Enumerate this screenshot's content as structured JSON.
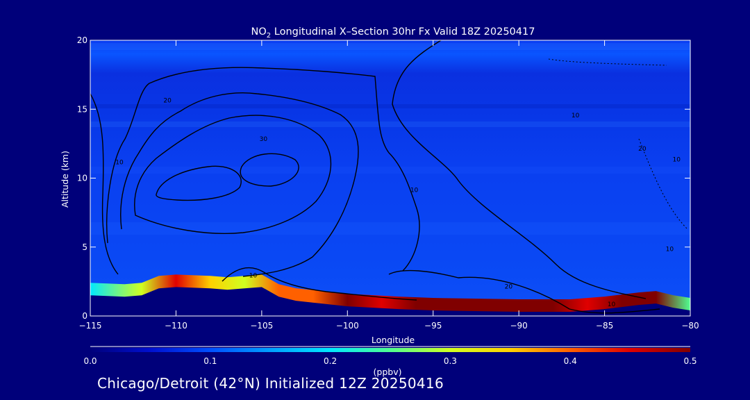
{
  "chart_data": {
    "type": "heatmap",
    "title_prefix": "NO",
    "title_subscript": "2",
    "title_suffix": " Longitudinal X–Section 30hr  Fx Valid 18Z 20250417",
    "xlabel": "Longitude",
    "ylabel": "Altitude (km)",
    "xlim": [
      -115,
      -80
    ],
    "ylim": [
      0,
      20
    ],
    "x_ticks": [
      -115,
      -110,
      -105,
      -100,
      -95,
      -90,
      -85,
      -80
    ],
    "x_tick_labels": [
      "−115",
      "−110",
      "−105",
      "−100",
      "−95",
      "−90",
      "−85",
      "−80"
    ],
    "y_ticks": [
      0,
      5,
      10,
      15,
      20
    ],
    "y_tick_labels": [
      "0",
      "5",
      "10",
      "15",
      "20"
    ],
    "colorbar": {
      "label": "(ppbv)",
      "range": [
        0.0,
        0.5
      ],
      "ticks": [
        0.0,
        0.1,
        0.2,
        0.3,
        0.4,
        0.5
      ],
      "tick_labels": [
        "0.0",
        "0.1",
        "0.2",
        "0.3",
        "0.4",
        "0.5"
      ],
      "colormap": [
        "#00007a",
        "#0010d0",
        "#0050ff",
        "#00a0ff",
        "#00e8ff",
        "#50ff90",
        "#d0ff20",
        "#ffd000",
        "#ff6000",
        "#e00000",
        "#800000"
      ]
    },
    "surface_profile": {
      "lon": [
        -115,
        -113,
        -112,
        -111,
        -110,
        -108,
        -107,
        -106,
        -105,
        -104,
        -103,
        -100,
        -97,
        -95,
        -90,
        -87,
        -85,
        -83,
        -82,
        -81,
        -80
      ],
      "alt_km": [
        1.5,
        1.4,
        1.5,
        2.0,
        2.1,
        2.0,
        1.9,
        2.0,
        2.1,
        1.4,
        1.1,
        0.7,
        0.5,
        0.4,
        0.3,
        0.3,
        0.5,
        0.8,
        0.9,
        0.6,
        0.4
      ]
    },
    "boundary_layer_no2_ppbv": {
      "lon": [
        -115,
        -112,
        -110,
        -108,
        -106,
        -104,
        -102,
        -100,
        -98,
        -96,
        -94,
        -92,
        -90,
        -88,
        -86,
        -84,
        -82,
        -80
      ],
      "value": [
        0.18,
        0.28,
        0.45,
        0.35,
        0.3,
        0.4,
        0.42,
        0.5,
        0.45,
        0.5,
        0.5,
        0.5,
        0.5,
        0.48,
        0.45,
        0.5,
        0.5,
        0.25
      ]
    },
    "contour_labels": [
      {
        "text": "10",
        "lon": -113.3,
        "alt": 11.0
      },
      {
        "text": "20",
        "lon": -110.5,
        "alt": 15.5
      },
      {
        "text": "30",
        "lon": -104.9,
        "alt": 12.7
      },
      {
        "text": "10",
        "lon": -105.5,
        "alt": 2.8
      },
      {
        "text": "10",
        "lon": -96.1,
        "alt": 9.0
      },
      {
        "text": "10",
        "lon": -86.7,
        "alt": 14.4
      },
      {
        "text": "20",
        "lon": -90.6,
        "alt": 2.0
      },
      {
        "text": "10",
        "lon": -84.6,
        "alt": 0.7
      },
      {
        "text": "20",
        "lon": -82.8,
        "alt": 12.0
      },
      {
        "text": "10",
        "lon": -80.8,
        "alt": 11.2
      },
      {
        "text": "10",
        "lon": -81.2,
        "alt": 4.7
      }
    ]
  },
  "footer": "Chicago/Detroit (42°N) Initialized 12Z 20250416"
}
